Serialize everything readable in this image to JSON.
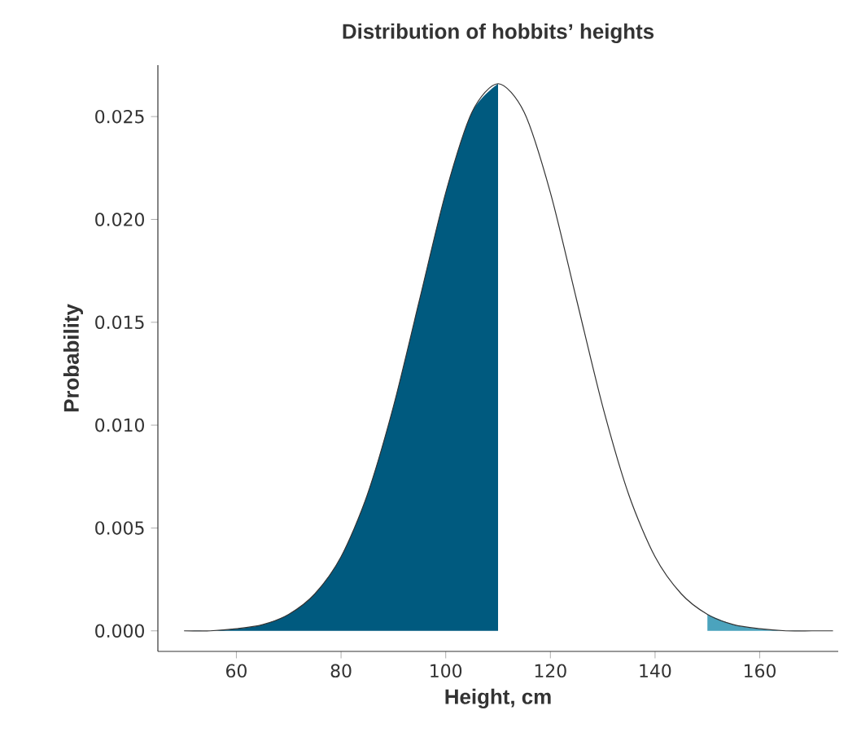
{
  "chart_data": {
    "type": "line",
    "title": "Distribution of hobbits’ heights",
    "xlabel": "Height, cm",
    "ylabel": "Probability",
    "series": [
      {
        "type": "area",
        "color": "#005a7f",
        "x": [
          50,
          55,
          60,
          65,
          70,
          75,
          80,
          85,
          90,
          95,
          100,
          105,
          110
        ],
        "values": [
          0.0,
          0.0,
          0.0001,
          0.0003,
          0.0008,
          0.0018,
          0.0036,
          0.0066,
          0.0109,
          0.0161,
          0.0213,
          0.0252,
          0.0266
        ]
      },
      {
        "type": "area",
        "color": "#4ba3bd",
        "x": [
          150,
          155,
          160,
          165,
          170,
          174
        ],
        "values": [
          0.0008,
          0.0003,
          0.0001,
          0.0,
          0.0,
          0.0
        ]
      },
      {
        "color": "#333333",
        "x": [
          50,
          55,
          60,
          65,
          70,
          75,
          80,
          85,
          90,
          95,
          100,
          105,
          110,
          115,
          120,
          125,
          130,
          135,
          140,
          145,
          150,
          155,
          160,
          165,
          170,
          174
        ],
        "values": [
          0.0,
          0.0,
          0.0001,
          0.0003,
          0.0008,
          0.0018,
          0.0036,
          0.0066,
          0.0109,
          0.0161,
          0.0213,
          0.0252,
          0.0266,
          0.0252,
          0.0213,
          0.0161,
          0.0109,
          0.0066,
          0.0036,
          0.0018,
          0.0008,
          0.0003,
          0.0001,
          0.0,
          0.0,
          0.0
        ]
      }
    ],
    "xlim": [
      45,
      175
    ],
    "ylim": [
      -0.001,
      0.0275
    ],
    "xticks": [
      60,
      80,
      100,
      120,
      140,
      160
    ],
    "yticks": [
      {
        "value": 0,
        "label": "0.000"
      },
      {
        "value": 0.005,
        "label": "0.005"
      },
      {
        "value": 0.01,
        "label": "0.010"
      },
      {
        "value": 0.015,
        "label": "0.015"
      },
      {
        "value": 0.02,
        "label": "0.020"
      },
      {
        "value": 0.025,
        "label": "0.025"
      }
    ]
  }
}
